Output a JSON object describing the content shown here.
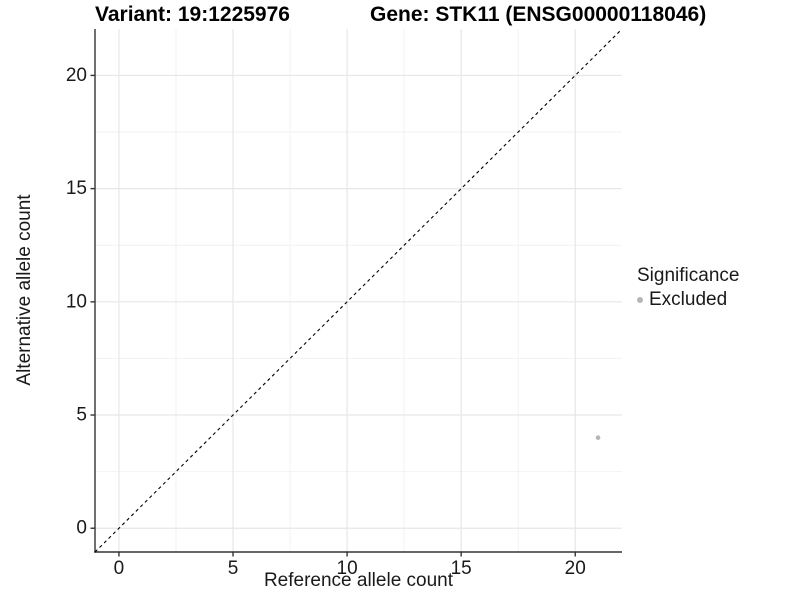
{
  "titles": {
    "variant": "Variant: 19:1225976",
    "gene": "Gene: STK11 (ENSG00000118046)"
  },
  "legend": {
    "title": "Significance",
    "items": [
      {
        "label": "Excluded",
        "color": "#b5b5b5"
      }
    ]
  },
  "colors": {
    "background": "#ffffff",
    "grid_major": "#e7e7e7",
    "grid_minor": "#f2f2f2",
    "axis_line": "#333333",
    "tick_mark": "#333333",
    "text": "#1a1a1a",
    "reference_line": "#000000",
    "point": "#b5b5b5"
  },
  "chart_data": {
    "type": "scatter",
    "title": "Variant: 19:1225976   |   Gene: STK11 (ENSG00000118046)",
    "xlabel": "Reference allele count",
    "ylabel": "Alternative allele count",
    "xlim": [
      -1.05,
      22.05
    ],
    "ylim": [
      -1.05,
      22.05
    ],
    "x_ticks": [
      0,
      5,
      10,
      15,
      20
    ],
    "y_ticks": [
      0,
      5,
      10,
      15,
      20
    ],
    "x_minor_ticks": [
      2.5,
      7.5,
      12.5,
      17.5
    ],
    "y_minor_ticks": [
      2.5,
      7.5,
      12.5,
      17.5
    ],
    "grid": true,
    "legend_position": "right",
    "legend_title": "Significance",
    "series": [
      {
        "name": "Excluded",
        "color": "#b5b5b5",
        "points": [
          {
            "x": 21,
            "y": 4
          }
        ]
      }
    ],
    "reference_line": {
      "type": "identity",
      "equation": "y = x",
      "style": "dashed",
      "color": "#000000"
    }
  }
}
